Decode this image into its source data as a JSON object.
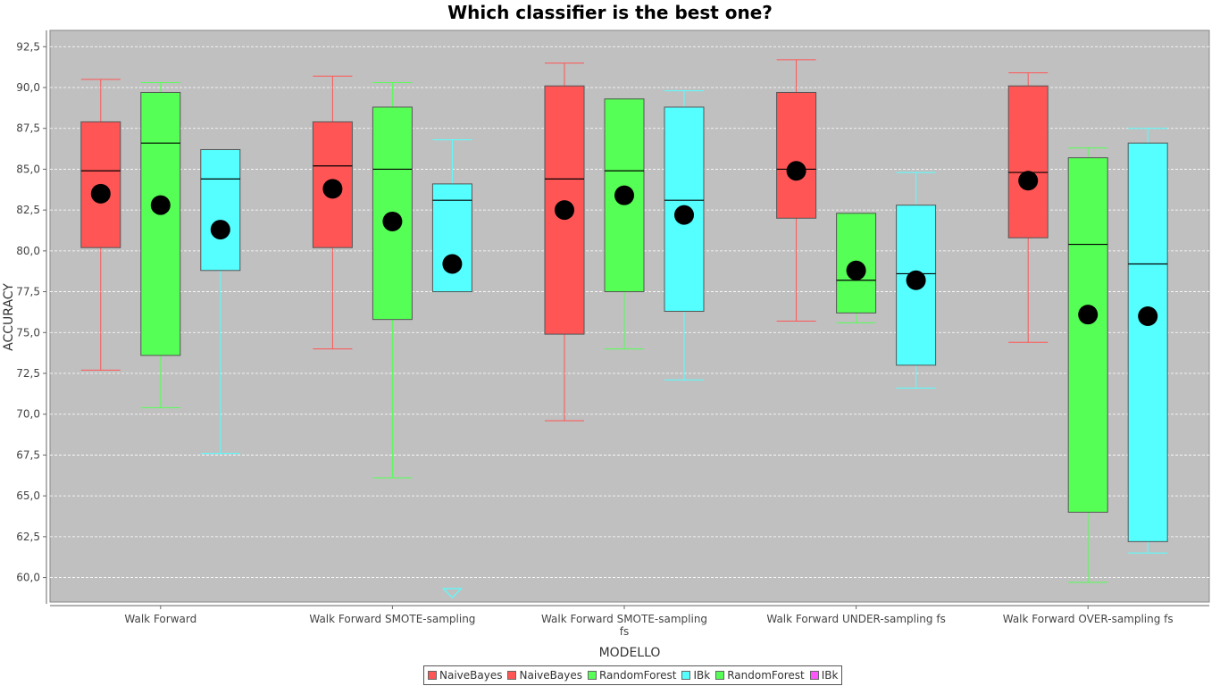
{
  "chart_data": {
    "type": "box",
    "title": "Which classifier is the best one?",
    "xlabel": "MODELLO",
    "ylabel": "ACCURACY",
    "ylim": [
      58.5,
      93.5
    ],
    "yticks": [
      "60,0",
      "62,5",
      "65,0",
      "67,5",
      "70,0",
      "72,5",
      "75,0",
      "77,5",
      "80,0",
      "82,5",
      "85,0",
      "87,5",
      "90,0",
      "92,5"
    ],
    "ytick_values": [
      60,
      62.5,
      65,
      67.5,
      70,
      72.5,
      75,
      77.5,
      80,
      82.5,
      85,
      87.5,
      90,
      92.5
    ],
    "grid": true,
    "legend_position": "bottom-center",
    "categories": [
      [
        "Walk Forward"
      ],
      [
        "Walk Forward SMOTE-sampling"
      ],
      [
        "Walk Forward SMOTE-sampling",
        "fs"
      ],
      [
        "Walk Forward UNDER-sampling fs"
      ],
      [
        "Walk Forward OVER-sampling fs"
      ]
    ],
    "series": [
      {
        "color": "#ff5555",
        "boxes": [
          {
            "min": 72.7,
            "q1": 80.2,
            "median": 84.9,
            "q3": 87.9,
            "max": 90.5,
            "mean": 83.5
          },
          {
            "min": 74.0,
            "q1": 80.2,
            "median": 85.2,
            "q3": 87.9,
            "max": 90.7,
            "mean": 83.8
          },
          {
            "min": 69.6,
            "q1": 74.9,
            "median": 84.4,
            "q3": 90.1,
            "max": 91.5,
            "mean": 82.5
          },
          {
            "min": 75.7,
            "q1": 82.0,
            "median": 85.0,
            "q3": 89.7,
            "max": 91.7,
            "mean": 84.9
          },
          {
            "min": 74.4,
            "q1": 80.8,
            "median": 84.8,
            "q3": 90.1,
            "max": 90.9,
            "mean": 84.3
          }
        ]
      },
      {
        "color": "#55ff55",
        "boxes": [
          {
            "min": 70.4,
            "q1": 73.6,
            "median": 86.6,
            "q3": 89.7,
            "max": 90.3,
            "mean": 82.8
          },
          {
            "min": 66.1,
            "q1": 75.8,
            "median": 85.0,
            "q3": 88.8,
            "max": 90.3,
            "mean": 81.8
          },
          {
            "min": 74.0,
            "q1": 77.5,
            "median": 84.9,
            "q3": 89.3,
            "max": 89.3,
            "mean": 83.4
          },
          {
            "min": 75.6,
            "q1": 76.2,
            "median": 78.2,
            "q3": 82.3,
            "max": 82.3,
            "mean": 78.8
          },
          {
            "min": 59.7,
            "q1": 64.0,
            "median": 80.4,
            "q3": 85.7,
            "max": 86.3,
            "mean": 76.1
          }
        ]
      },
      {
        "color": "#55ffff",
        "boxes": [
          {
            "min": 67.6,
            "q1": 78.8,
            "median": 84.4,
            "q3": 86.2,
            "max": 86.2,
            "mean": 81.3
          },
          {
            "min": 77.5,
            "q1": 77.5,
            "median": 83.1,
            "q3": 84.1,
            "max": 86.8,
            "mean": 79.2,
            "outlier_below": 59.1
          },
          {
            "min": 72.1,
            "q1": 76.3,
            "median": 83.1,
            "q3": 88.8,
            "max": 89.8,
            "mean": 82.2
          },
          {
            "min": 71.6,
            "q1": 73.0,
            "median": 78.6,
            "q3": 82.8,
            "max": 84.8,
            "mean": 78.2
          },
          {
            "min": 61.5,
            "q1": 62.2,
            "median": 79.2,
            "q3": 86.6,
            "max": 87.5,
            "mean": 76.0
          }
        ]
      }
    ]
  },
  "legend": {
    "entries": [
      {
        "label": "NaiveBayes",
        "color": "#ff5555"
      },
      {
        "label": "NaiveBayes",
        "color": "#ff5555"
      },
      {
        "label": "RandomForest",
        "color": "#55ff55"
      },
      {
        "label": "IBk",
        "color": "#55ffff"
      },
      {
        "label": "RandomForest",
        "color": "#55ff55"
      },
      {
        "label": "IBk",
        "color": "#ff55ff"
      }
    ]
  },
  "colors": {
    "plot_background": "#c0c0c0",
    "gridline": "#ffffff",
    "mean_marker": "#000000"
  }
}
